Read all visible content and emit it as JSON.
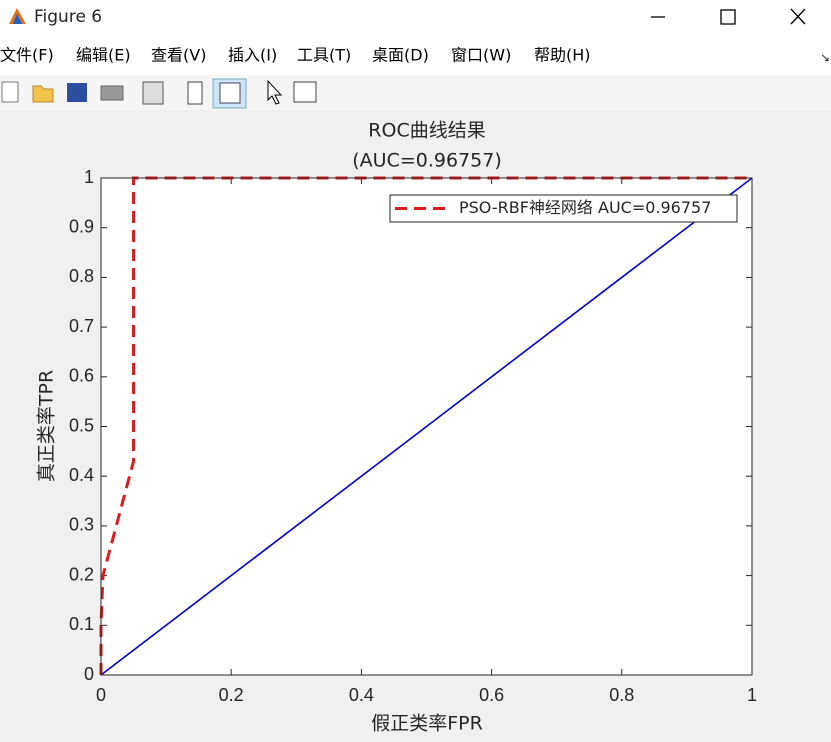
{
  "window": {
    "title": "Figure 6",
    "menu": [
      "文件(F)",
      "编辑(E)",
      "查看(V)",
      "插入(I)",
      "工具(T)",
      "桌面(D)",
      "窗口(W)",
      "帮助(H)"
    ]
  },
  "chart_data": {
    "type": "line",
    "title": "ROC曲线结果",
    "subtitle": "(AUC=0.96757)",
    "x_label": "假正类率FPR",
    "y_label": "真正类率TPR",
    "xlim": [
      0,
      1
    ],
    "ylim": [
      0,
      1
    ],
    "xticks": [
      0,
      0.2,
      0.4,
      0.6,
      0.8,
      1
    ],
    "yticks": [
      0,
      0.1,
      0.2,
      0.3,
      0.4,
      0.5,
      0.6,
      0.7,
      0.8,
      0.9,
      1
    ],
    "legend": "northeast",
    "series": [
      {
        "name": "PSO-RBF神经网络 AUC=0.96757",
        "color": "#dd1c1c",
        "style": "dashed",
        "x": [
          0,
          0,
          0.003,
          0.05,
          0.05,
          1
        ],
        "values": [
          0,
          0.1,
          0.2,
          0.43,
          1,
          1
        ]
      },
      {
        "color": "#0000cc",
        "style": "solid",
        "x": [
          0,
          1
        ],
        "values": [
          0,
          1
        ]
      }
    ]
  }
}
